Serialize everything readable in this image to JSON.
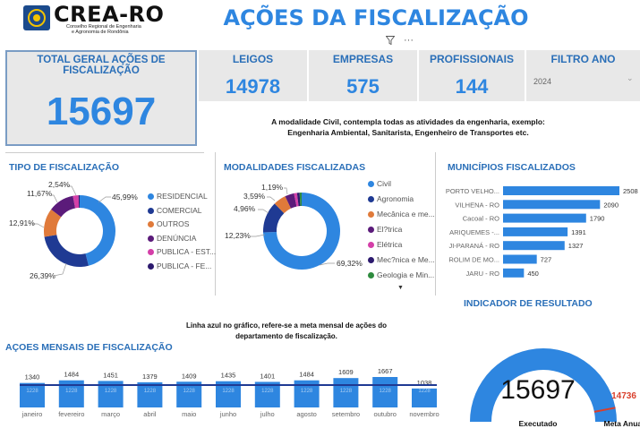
{
  "header": {
    "logo_text": "CREA-RO",
    "logo_sub1": "Conselho Regional de Engenharia",
    "logo_sub2": "e Agronomia de Rondônia",
    "title": "AÇÕES DA FISCALIZAÇÃO"
  },
  "kpis": {
    "total_label": "TOTAL GERAL AÇÕES DE FISCALIZAÇÃO",
    "total_value": "15697",
    "leigos_label": "LEIGOS",
    "leigos_value": "14978",
    "empresas_label": "EMPRESAS",
    "empresas_value": "575",
    "profissionais_label": "PROFISSIONAIS",
    "profissionais_value": "144",
    "filtro_label": "FILTRO ANO",
    "filtro_value": "2024"
  },
  "notes": {
    "civil_line1": "A modalidade Civil, contempla todas as atividades da engenharia, exemplo:",
    "civil_line2": "Engenharia Ambiental, Sanitarista, Engenheiro de Transportes etc.",
    "meta_line1": "Linha azul no gráfico, refere-se a meta mensal de ações do",
    "meta_line2": "departamento de fiscalização."
  },
  "colors": {
    "accent": "#2e86e0",
    "dark_blue": "#1f3a93",
    "orange": "#e07a3a",
    "purple": "#5b1b7a",
    "pink": "#d43fa8",
    "navy": "#2c1a6e",
    "red": "#d93f2b",
    "green": "#2e8b3e",
    "gauge_bg": "#e6e6e6"
  },
  "chart_data": [
    {
      "type": "pie",
      "title": "TIPO DE FISCALIZAÇÃO",
      "labels": [
        "RESIDENCIAL",
        "COMERCIAL",
        "OUTROS",
        "DENÚNCIA",
        "PUBLICA - EST...",
        "PUBLICA - FE..."
      ],
      "values": [
        45.99,
        26.39,
        12.91,
        11.67,
        2.54,
        0.5
      ],
      "value_labels": [
        "45,99%",
        "26,39%",
        "12,91%",
        "11,67%",
        "2,54%",
        ""
      ],
      "colors": [
        "#2e86e0",
        "#1f3a93",
        "#e07a3a",
        "#5b1b7a",
        "#d43fa8",
        "#2c1a6e"
      ],
      "donut": true
    },
    {
      "type": "pie",
      "title": "MODALIDADES FISCALIZADAS",
      "labels": [
        "Civil",
        "Agronomia",
        "Mecânica e me...",
        "El?trica",
        "Elétrica",
        "Mec?nica e Me...",
        "Geologia e Min..."
      ],
      "values": [
        69.32,
        12.23,
        4.96,
        3.59,
        1.19,
        1.0,
        0.8
      ],
      "value_labels": [
        "69,32%",
        "12,23%",
        "4,96%",
        "3,59%",
        "1,19%",
        "",
        ""
      ],
      "colors": [
        "#2e86e0",
        "#1f3a93",
        "#e07a3a",
        "#5b1b7a",
        "#d43fa8",
        "#2c1a6e",
        "#2e8b3e"
      ],
      "donut": true
    },
    {
      "type": "bar",
      "orientation": "horizontal",
      "title": "MUNICÍPIOS FISCALIZADOS",
      "categories": [
        "PORTO VELHO...",
        "VILHENA - RO",
        "Cacoal - RO",
        "ARIQUEMES -...",
        "JI-PARANÁ - RO",
        "ROLIM DE MO...",
        "JARU - RO"
      ],
      "values": [
        2508,
        2090,
        1790,
        1391,
        1327,
        727,
        450
      ],
      "color": "#2e86e0"
    },
    {
      "type": "bar",
      "title": "AÇOES MENSAIS DE FISCALIZAÇÃO",
      "categories": [
        "janeiro",
        "fevereiro",
        "março",
        "abril",
        "maio",
        "junho",
        "julho",
        "agosto",
        "setembro",
        "outubro",
        "novembro"
      ],
      "values": [
        1340,
        1484,
        1451,
        1379,
        1409,
        1435,
        1401,
        1484,
        1609,
        1667,
        1038
      ],
      "meta_line": 1228,
      "meta_labels": [
        "1228",
        "1228",
        "1228",
        "1228",
        "1228",
        "1228",
        "1228",
        "1228",
        "1228",
        "1228",
        "1228"
      ],
      "color": "#2e86e0",
      "line_color": "#1f3a93"
    },
    {
      "type": "gauge",
      "title": "INDICADOR DE RESULTADO",
      "value": 15697,
      "value_label": "15697",
      "target": 14736,
      "target_label": "14736",
      "value_caption": "Executado",
      "target_caption": "Meta Anual",
      "color": "#2e86e0",
      "target_color": "#d93f2b"
    }
  ]
}
